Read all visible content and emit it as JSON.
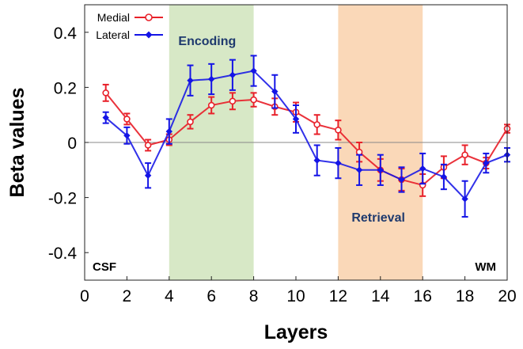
{
  "chart_data": {
    "type": "line",
    "xlabel": "Layers",
    "ylabel": "Beta values",
    "xlim": [
      0,
      20
    ],
    "ylim": [
      -0.5,
      0.5
    ],
    "x_ticks": [
      "0",
      "2",
      "4",
      "6",
      "8",
      "10",
      "12",
      "14",
      "16",
      "18",
      "20"
    ],
    "y_ticks": [
      {
        "value": 0.4,
        "label": "0.4"
      },
      {
        "value": 0.2,
        "label": "0.2"
      },
      {
        "value": 0,
        "label": "0"
      },
      {
        "value": -0.2,
        "label": "-0.2"
      },
      {
        "value": -0.4,
        "label": "-0.4"
      }
    ],
    "x": [
      1,
      2,
      3,
      4,
      5,
      6,
      7,
      8,
      9,
      10,
      11,
      12,
      13,
      14,
      15,
      16,
      17,
      18,
      19,
      20
    ],
    "series": [
      {
        "name": "Medial",
        "color": "#e8212a",
        "marker": "open-circle",
        "values": [
          0.18,
          0.085,
          -0.01,
          0.01,
          0.075,
          0.135,
          0.15,
          0.155,
          0.13,
          0.11,
          0.065,
          0.045,
          -0.035,
          -0.1,
          -0.135,
          -0.155,
          -0.09,
          -0.045,
          -0.075,
          0.05
        ],
        "errors": [
          0.03,
          0.02,
          0.02,
          0.02,
          0.025,
          0.03,
          0.03,
          0.025,
          0.03,
          0.035,
          0.035,
          0.035,
          0.035,
          0.04,
          0.04,
          0.04,
          0.04,
          0.035,
          0.02,
          0.015
        ]
      },
      {
        "name": "Lateral",
        "color": "#1414e6",
        "marker": "filled-diamond",
        "values": [
          0.09,
          0.025,
          -0.12,
          0.04,
          0.225,
          0.23,
          0.245,
          0.26,
          0.185,
          0.085,
          -0.065,
          -0.075,
          -0.1,
          -0.1,
          -0.135,
          -0.095,
          -0.125,
          -0.205,
          -0.075,
          -0.045
        ],
        "errors": [
          0.02,
          0.03,
          0.045,
          0.045,
          0.055,
          0.055,
          0.055,
          0.055,
          0.06,
          0.05,
          0.055,
          0.055,
          0.055,
          0.055,
          0.045,
          0.055,
          0.045,
          0.065,
          0.035,
          0.025
        ]
      }
    ],
    "bands": [
      {
        "label": "Encoding",
        "from": 4,
        "to": 8,
        "color": "#d3e6c0"
      },
      {
        "label": "Retrieval",
        "from": 12,
        "to": 16,
        "color": "#f9d4b0"
      }
    ],
    "corner_labels": {
      "left": "CSF",
      "right": "WM"
    },
    "legend": {
      "position": "top-left"
    }
  }
}
